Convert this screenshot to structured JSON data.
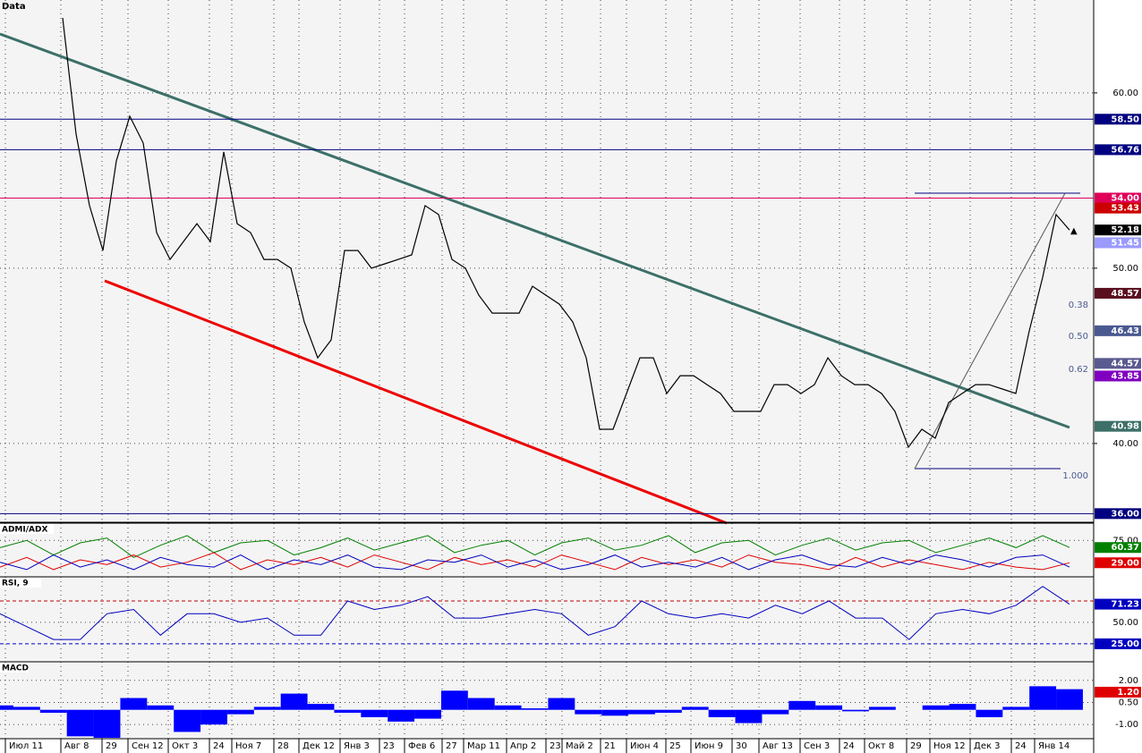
{
  "chart_data": {
    "type": "line",
    "title": "Data",
    "price": {
      "color": "#000000",
      "values": [
        64.28,
        57.65,
        53.57,
        51.01,
        56.12,
        58.67,
        57.14,
        52.03,
        50.5,
        51.52,
        52.54,
        51.52,
        56.63,
        52.54,
        52.03,
        50.5,
        50.5,
        50,
        46.93,
        44.89,
        45.91,
        51.01,
        51.01,
        50,
        50.25,
        50.5,
        50.76,
        53.57,
        53.06,
        50.5,
        50,
        48.46,
        47.44,
        47.44,
        47.44,
        48.97,
        48.46,
        47.95,
        46.93,
        44.89,
        40.81,
        40.81,
        42.85,
        44.89,
        44.89,
        42.85,
        43.87,
        43.87,
        43.36,
        42.85,
        41.83,
        41.83,
        41.83,
        43.36,
        43.36,
        42.85,
        43.36,
        44.89,
        43.87,
        43.36,
        43.36,
        42.85,
        41.83,
        39.79,
        40.81,
        40.3,
        42.34,
        42.85,
        43.36,
        43.36,
        43.11,
        42.85,
        46.42,
        49.48,
        53.06,
        52.18
      ]
    },
    "ylim": [
      35.71,
      65.3
    ],
    "yticks": [
      {
        "value": 40,
        "label": "40.00"
      },
      {
        "value": 50,
        "label": "50.00"
      },
      {
        "value": 60,
        "label": "60.00"
      }
    ],
    "grid": true,
    "price_labels": [
      {
        "value": 58.5,
        "label": "58.50",
        "color": "#000080",
        "line": true
      },
      {
        "value": 56.76,
        "label": "56.76",
        "color": "#000080",
        "line": true
      },
      {
        "value": 54,
        "label": "54.00",
        "color": "#e0005a",
        "line": true
      },
      {
        "value": 53.43,
        "label": "53.43",
        "color": "#cc0000",
        "line": false
      },
      {
        "value": 52.18,
        "label": "52.18",
        "color": "#000000",
        "line": false
      },
      {
        "value": 51.45,
        "label": "51.45",
        "color": "#9a9aff",
        "line": false
      },
      {
        "value": 48.57,
        "label": "48.57",
        "color": "#5a1020",
        "line": false
      },
      {
        "value": 46.43,
        "label": "46.43",
        "color": "#4a5a90",
        "line": false
      },
      {
        "value": 44.57,
        "label": "44.57",
        "color": "#5a5a90",
        "line": false
      },
      {
        "value": 43.85,
        "label": "43.85",
        "color": "#8000c0",
        "line": false
      },
      {
        "value": 40.98,
        "label": "40.98",
        "color": "#3c7068",
        "line": false
      },
      {
        "value": 36,
        "label": "36.00",
        "color": "#000080",
        "line": true
      }
    ],
    "fib_labels": [
      "0.38",
      "0.50",
      "0.62",
      "1.000"
    ],
    "x_labels": [
      "Июл 11",
      "Авг 8",
      "29",
      "Сен 12",
      "Окт 3",
      "24",
      "Ноя 7",
      "28",
      "Дек 12",
      "Янв 3",
      "23",
      "Фев 6",
      "27",
      "Мар 11",
      "Апр 2",
      "23",
      "Май 2",
      "21",
      "Июн 4",
      "25",
      "Июн 9",
      "30",
      "Авг 13",
      "Сен 3",
      "24",
      "Окт 8",
      "29",
      "Ноя 12",
      "Дек 3",
      "24",
      "Янв 14"
    ],
    "panels": [
      {
        "title": "ADMI/ADX",
        "ylim": [
          0,
          105
        ],
        "yticks": [
          {
            "value": 75,
            "label": "75.00"
          }
        ],
        "levels": [],
        "price_labels": [
          {
            "value": 60.37,
            "label": "60.37",
            "color": "#008000"
          },
          {
            "value": 29,
            "label": "29.00",
            "color": "#e00000"
          }
        ],
        "series": [
          {
            "type": "line",
            "color": "#008000",
            "values": [
              60,
              75,
              45,
              70,
              80,
              40,
              65,
              85,
              50,
              70,
              75,
              45,
              60,
              80,
              55,
              70,
              85,
              50,
              65,
              75,
              45,
              70,
              80,
              55,
              65,
              85,
              50,
              70,
              75,
              45,
              65,
              80,
              55,
              70,
              75,
              50,
              65,
              80,
              60,
              85,
              60.37
            ]
          },
          {
            "type": "line",
            "color": "#e00000",
            "values": [
              20,
              40,
              15,
              35,
              25,
              45,
              20,
              30,
              50,
              15,
              35,
              25,
              40,
              20,
              45,
              30,
              15,
              40,
              25,
              35,
              20,
              45,
              30,
              15,
              40,
              25,
              35,
              20,
              45,
              30,
              25,
              15,
              40,
              20,
              35,
              25,
              15,
              30,
              20,
              15,
              29
            ]
          },
          {
            "type": "line",
            "color": "#0000c0",
            "values": [
              30,
              15,
              45,
              20,
              35,
              15,
              40,
              25,
              20,
              45,
              15,
              35,
              25,
              45,
              20,
              15,
              35,
              30,
              45,
              20,
              35,
              15,
              25,
              45,
              20,
              30,
              20,
              40,
              15,
              35,
              45,
              25,
              20,
              40,
              25,
              45,
              35,
              20,
              40,
              45,
              20
            ]
          }
        ]
      },
      {
        "title": "RSI, 9",
        "ylim": [
          4,
          100
        ],
        "yticks": [
          {
            "value": 50,
            "label": "50.00"
          }
        ],
        "levels": [
          {
            "value": 75,
            "color": "#c00000"
          },
          {
            "value": 25,
            "color": "#0000c0"
          }
        ],
        "price_labels": [
          {
            "value": 71.23,
            "label": "71.23",
            "color": "#0000c0"
          },
          {
            "value": 25,
            "label": "25.00",
            "color": "#0000c0"
          }
        ],
        "series": [
          {
            "type": "line",
            "color": "#0000c0",
            "values": [
              60,
              45,
              30,
              30,
              60,
              65,
              35,
              60,
              60,
              50,
              55,
              35,
              35,
              75,
              65,
              70,
              80,
              55,
              55,
              60,
              65,
              60,
              35,
              45,
              75,
              60,
              55,
              60,
              55,
              70,
              60,
              75,
              55,
              55,
              30,
              60,
              65,
              60,
              70,
              92,
              71.23
            ]
          }
        ]
      },
      {
        "title": "MACD",
        "ylim": [
          -1.9,
          3.08
        ],
        "yticks": [
          {
            "value": 2,
            "label": "2.00"
          },
          {
            "value": 0.5,
            "label": "0.50"
          },
          {
            "value": -1,
            "label": "-1.00"
          }
        ],
        "levels": [],
        "price_labels": [
          {
            "value": 1.2,
            "label": "1.20",
            "color": "#e00000"
          }
        ],
        "series": [
          {
            "type": "bar",
            "color": "#0000ff",
            "values": [
              0.3,
              0.2,
              -0.2,
              -1.8,
              -1.9,
              0.8,
              0.3,
              -1.5,
              -1.0,
              -0.3,
              0.2,
              1.1,
              0.4,
              -0.2,
              -0.5,
              -0.8,
              -0.6,
              1.3,
              0.8,
              0.3,
              0.1,
              0.8,
              -0.3,
              -0.4,
              -0.3,
              -0.2,
              0.2,
              -0.5,
              -0.9,
              -0.3,
              0.6,
              0.3,
              -0.1,
              0.2,
              0.0,
              0.3,
              0.4,
              -0.5,
              0.2,
              1.6,
              1.4
            ]
          }
        ]
      }
    ]
  }
}
